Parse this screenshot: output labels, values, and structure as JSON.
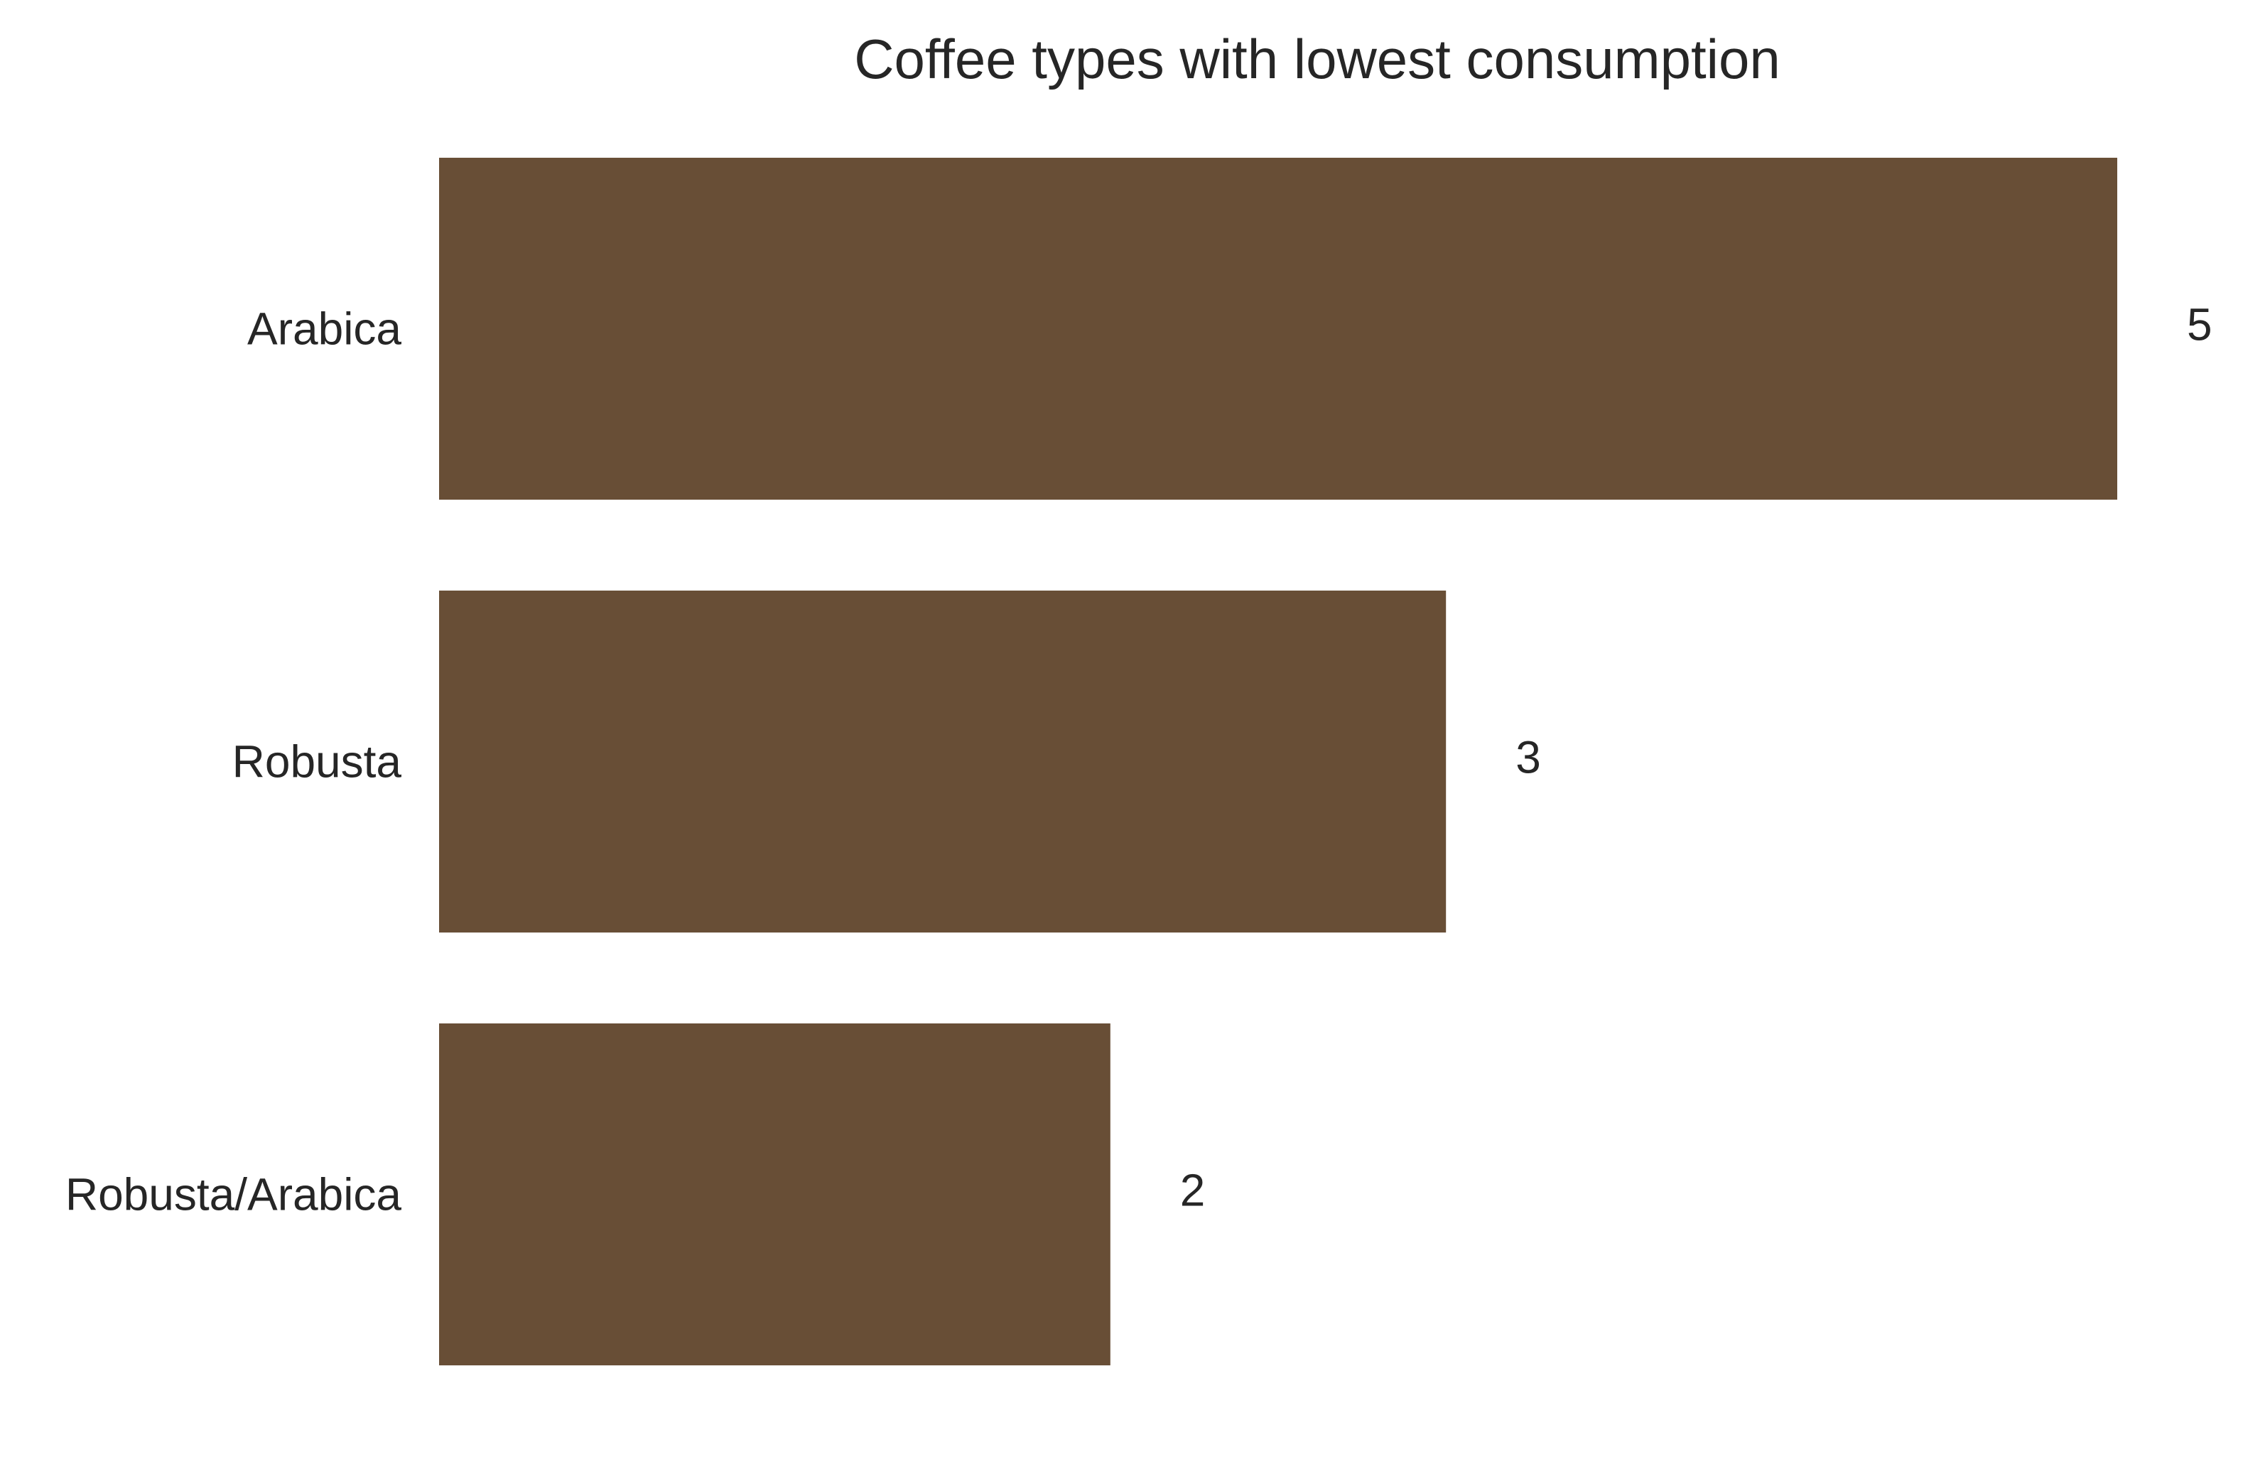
{
  "chart_data": {
    "type": "bar",
    "orientation": "horizontal",
    "title": "Coffee types with lowest consumption",
    "xlabel": "",
    "ylabel": "",
    "categories": [
      "Arabica",
      "Robusta",
      "Robusta/Arabica"
    ],
    "values": [
      5,
      3,
      2
    ],
    "value_labels": [
      "5",
      "3",
      "2"
    ],
    "xlim": [
      0,
      5
    ],
    "grid": false,
    "legend": "none",
    "colors": {
      "bar": "#684E36",
      "text": "#262626",
      "background": "#FFFFFF"
    }
  }
}
